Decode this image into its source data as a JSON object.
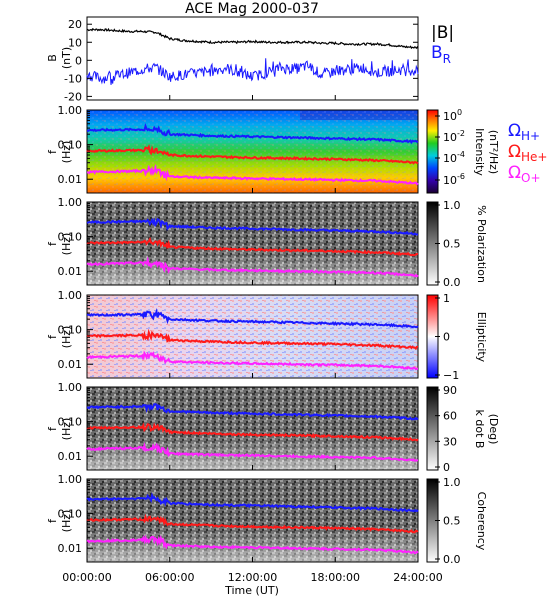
{
  "title": "ACE Mag 2000-037",
  "time_axis": {
    "label": "Time (UT)",
    "ticks": [
      "00:00:00",
      "06:00:00",
      "12:00:00",
      "18:00:00",
      "24:00:00"
    ],
    "range_hours": [
      0,
      24
    ]
  },
  "panels": [
    {
      "id": "field",
      "ylabel": "B",
      "yunit": "(nT)",
      "ylim": [
        -22,
        24
      ],
      "yticks": [
        "20",
        "10",
        "0",
        "-10",
        "-20"
      ],
      "yticks_values": [
        20,
        10,
        0,
        -10,
        -20
      ],
      "legend": {
        "b": "|B|",
        "br": "B",
        "br_sub": "R"
      }
    },
    {
      "id": "intensity",
      "ylabel": "f",
      "yunit": "(Hz)",
      "yticks": [
        "1.00",
        "0.10",
        "0.01"
      ],
      "colorbar": {
        "label": "Intensity",
        "unit": "(nT²/Hz)",
        "ticks": [
          "10",
          "10",
          "10",
          "10"
        ],
        "exponents": [
          "0",
          "-2",
          "-4",
          "-6"
        ]
      },
      "gyro_labels": [
        {
          "sym": "Ω",
          "sub": "H+"
        },
        {
          "sym": "Ω",
          "sub": "He+"
        },
        {
          "sym": "Ω",
          "sub": "O+"
        }
      ]
    },
    {
      "id": "polarization",
      "ylabel": "f",
      "yunit": "(Hz)",
      "yticks": [
        "1.00",
        "0.10",
        "0.01"
      ],
      "colorbar": {
        "label": "% Polarization",
        "ticks": [
          "1.0",
          "0.5",
          "0.0"
        ]
      }
    },
    {
      "id": "ellipticity",
      "ylabel": "f",
      "yunit": "(Hz)",
      "yticks": [
        "1.00",
        "0.10",
        "0.01"
      ],
      "colorbar": {
        "label": "Ellipticity",
        "ticks": [
          "1",
          "0",
          "−1"
        ]
      }
    },
    {
      "id": "kdotb",
      "ylabel": "f",
      "yunit": "(Hz)",
      "yticks": [
        "1.00",
        "0.10",
        "0.01"
      ],
      "colorbar": {
        "label": "k dot B",
        "unit": "(Deg)",
        "ticks": [
          "90",
          "60",
          "30",
          "0"
        ]
      }
    },
    {
      "id": "coherency",
      "ylabel": "f",
      "yunit": "(Hz)",
      "yticks": [
        "1.00",
        "0.10",
        "0.01"
      ],
      "colorbar": {
        "label": "Coherency",
        "ticks": [
          "1.0",
          "0.5",
          "0.0"
        ]
      }
    }
  ],
  "colors": {
    "h_plus": "#1a1aff",
    "he_plus": "#ff1a1a",
    "o_plus": "#ff22ff",
    "br": "#1a1aff",
    "b": "#000000"
  },
  "chart_data": [
    {
      "type": "line",
      "title": "ACE Mag 2000-037",
      "xlabel": "Time (UT)",
      "ylabel": "B (nT)",
      "ylim": [
        -22,
        24
      ],
      "x": [
        0,
        1,
        2,
        3,
        4,
        5,
        6,
        7,
        8,
        9,
        10,
        11,
        12,
        13,
        14,
        15,
        16,
        17,
        18,
        19,
        20,
        21,
        22,
        23,
        24
      ],
      "series": [
        {
          "name": "|B|",
          "values": [
            17,
            17,
            16.5,
            16,
            16,
            15.5,
            12,
            11,
            10.5,
            10,
            10,
            10,
            10.5,
            10,
            10,
            10,
            10,
            9.5,
            9.5,
            9,
            9,
            9,
            8.5,
            7.5,
            7
          ]
        },
        {
          "name": "B_R",
          "values": [
            -8,
            -10,
            -9,
            -7,
            -5,
            -4,
            -9,
            -8,
            -7,
            -6,
            -4,
            -7,
            -9,
            -7,
            -4,
            -5,
            -3,
            -8,
            -6,
            -5,
            -4,
            -7,
            -6,
            -5,
            -6
          ]
        }
      ]
    },
    {
      "type": "heatmap",
      "title": "",
      "xlabel": "Time (UT)",
      "ylabel": "f (Hz)",
      "ylim": [
        0.004,
        1.0
      ],
      "yscale": "log",
      "x": [
        0,
        3,
        5,
        6,
        9,
        12,
        15,
        18,
        21,
        24
      ],
      "series": [
        {
          "name": "Ω H+",
          "values": [
            0.26,
            0.27,
            0.28,
            0.2,
            0.18,
            0.17,
            0.16,
            0.15,
            0.14,
            0.12
          ]
        },
        {
          "name": "Ω He+",
          "values": [
            0.065,
            0.068,
            0.07,
            0.05,
            0.045,
            0.042,
            0.04,
            0.038,
            0.035,
            0.03
          ]
        },
        {
          "name": "Ω O+",
          "values": [
            0.016,
            0.017,
            0.018,
            0.012,
            0.011,
            0.0105,
            0.01,
            0.0095,
            0.009,
            0.0075
          ]
        }
      ]
    }
  ]
}
